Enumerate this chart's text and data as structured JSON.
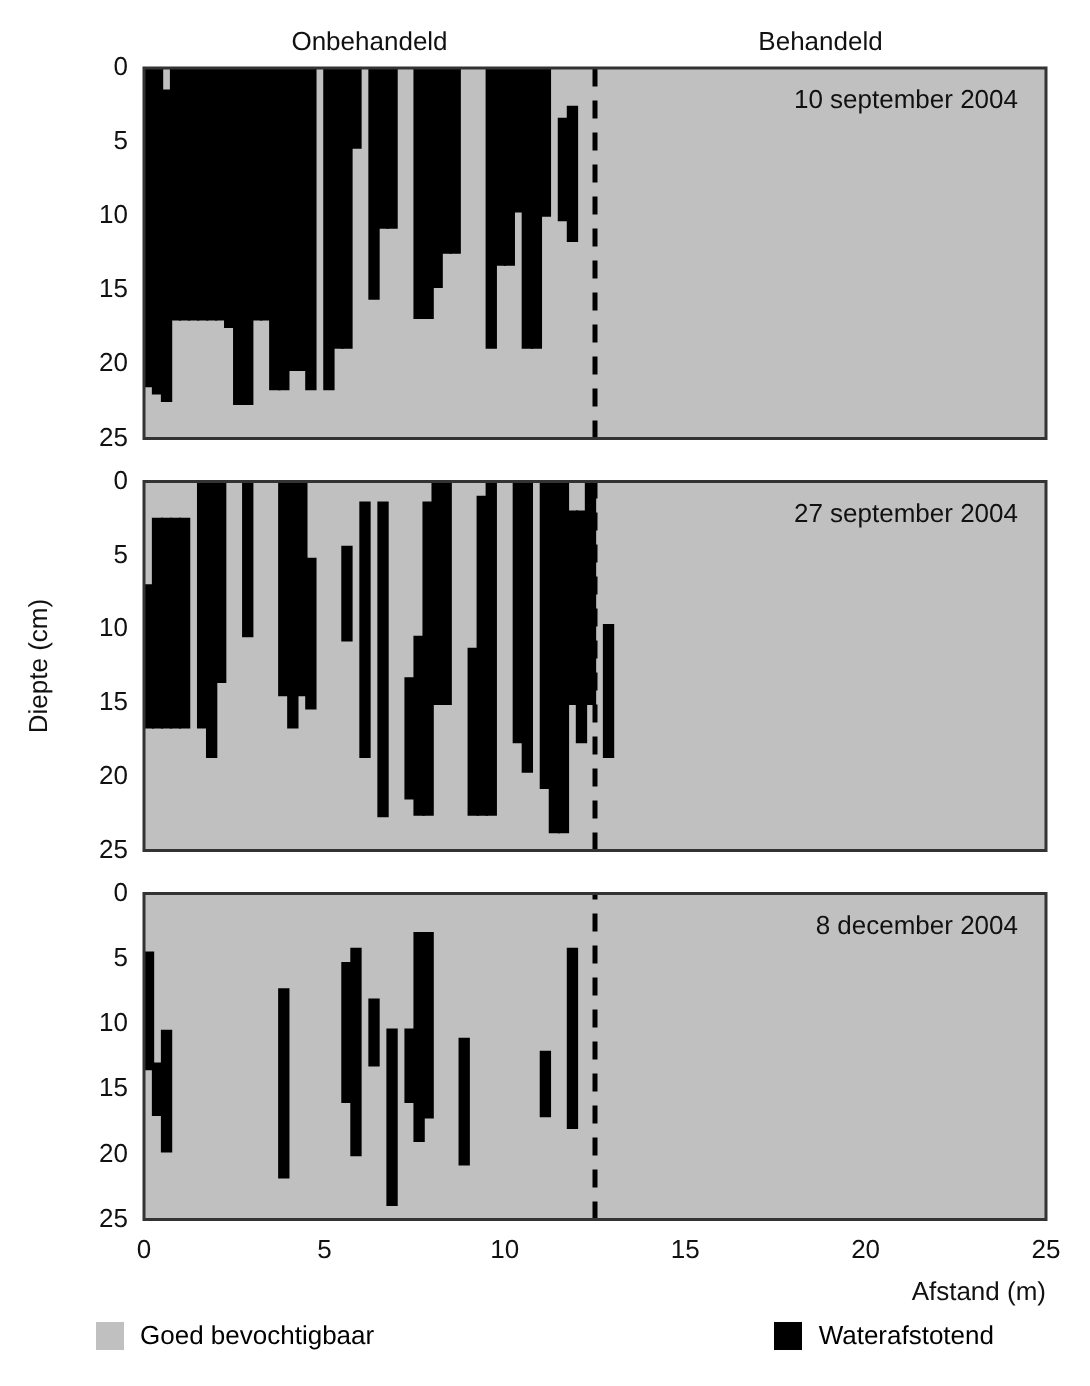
{
  "chart_data": [
    {
      "type": "bar",
      "title": "10 september 2004",
      "annotations": [
        "Onbehandeld",
        "Behandeld"
      ],
      "xlim": [
        0,
        25
      ],
      "xticks": [
        0,
        5,
        10,
        15,
        20,
        25
      ],
      "ylim": [
        25,
        0
      ],
      "yticks": [
        0,
        5,
        10,
        15,
        20,
        25
      ],
      "tick_labels": "y",
      "ref_lines": [
        {
          "axis": "x",
          "value": 12.5,
          "color": "#000000",
          "line_style": "dashed"
        }
      ],
      "series": [
        {
          "color": "#000000",
          "x": [
            0.125,
            0.375,
            0.625,
            0.875,
            1.125,
            1.375,
            1.625,
            1.875,
            2.125,
            2.375,
            2.625,
            2.875,
            3.125,
            3.375,
            3.625,
            3.875,
            4.125,
            4.375,
            4.625,
            5.125,
            5.375,
            5.625,
            5.875,
            6.375,
            6.625,
            6.875,
            7.625,
            7.875,
            8.125,
            8.375,
            8.625,
            9.625,
            9.875,
            10.125,
            10.375,
            10.625,
            10.875,
            11.125,
            11.625,
            11.875
          ],
          "base": [
            0,
            0,
            1.5,
            0,
            0,
            0,
            0,
            0,
            0,
            0,
            0,
            0,
            0,
            0,
            0,
            0,
            0,
            0,
            0,
            0,
            0,
            0,
            0,
            0,
            0,
            0,
            0,
            0,
            0,
            0,
            0,
            0,
            0,
            0,
            0,
            0,
            0,
            0,
            3.4,
            2.6
          ],
          "values": [
            21.5,
            22,
            21,
            17,
            17,
            17,
            17,
            17,
            17,
            17.5,
            22.7,
            22.7,
            17,
            17,
            21.7,
            21.7,
            20.4,
            20.4,
            21.7,
            21.7,
            18.9,
            18.9,
            5.4,
            15.6,
            10.8,
            10.8,
            16.9,
            16.9,
            14.8,
            12.5,
            12.5,
            18.9,
            13.3,
            13.3,
            9.7,
            18.9,
            18.9,
            10,
            6.9,
            9.1
          ]
        }
      ]
    },
    {
      "type": "bar",
      "title": "27 september 2004",
      "ylabel": "Diepte (cm)",
      "xlim": [
        0,
        25
      ],
      "xticks": [
        0,
        5,
        10,
        15,
        20,
        25
      ],
      "ylim": [
        25,
        0
      ],
      "yticks": [
        0,
        5,
        10,
        15,
        20,
        25
      ],
      "tick_labels": "y",
      "ref_lines": [
        {
          "axis": "x",
          "value": 12.5,
          "color": "#000000",
          "line_style": "dashed"
        }
      ],
      "series": [
        {
          "color": "#000000",
          "x": [
            0.125,
            0.375,
            0.625,
            0.875,
            1.125,
            1.625,
            1.875,
            2.125,
            2.875,
            3.875,
            4.125,
            4.375,
            4.625,
            5.625,
            6.125,
            6.625,
            7.375,
            7.625,
            7.875,
            8.125,
            8.375,
            9.125,
            9.375,
            9.625,
            10.375,
            10.625,
            11.125,
            11.375,
            11.625,
            11.875,
            12.125,
            12.375,
            12.875
          ],
          "base": [
            7,
            2.5,
            2.5,
            2.5,
            2.5,
            0,
            0,
            0,
            0,
            0,
            0,
            0,
            5.2,
            4.4,
            1.4,
            1.4,
            13.3,
            10.5,
            1.4,
            0,
            0,
            11.3,
            1,
            0,
            0,
            0,
            0,
            0,
            0,
            2,
            2,
            0,
            9.7
          ],
          "values": [
            9.7,
            14.2,
            14.2,
            14.2,
            14.2,
            16.7,
            18.7,
            13.6,
            10.5,
            14.5,
            16.7,
            14.5,
            10.2,
            6.4,
            17.3,
            21.3,
            8.2,
            12.1,
            21.2,
            15.1,
            15.1,
            11.3,
            21.6,
            22.6,
            17.7,
            19.7,
            20.8,
            23.8,
            23.8,
            13.1,
            15.7,
            15.1,
            9
          ]
        }
      ]
    },
    {
      "type": "bar",
      "title": "8 december 2004",
      "annotations": [
        "Goed bevochtigbaar"
      ],
      "xlabel": "Afstand (m)",
      "xlim": [
        0,
        25
      ],
      "xticks": [
        0,
        5,
        10,
        15,
        20,
        25
      ],
      "ylim": [
        25,
        0
      ],
      "yticks": [
        0,
        5,
        10,
        15,
        20,
        25
      ],
      "legend": "bottom",
      "ref_lines": [
        {
          "axis": "x",
          "value": 12.5,
          "color": "#000000",
          "line_style": "dashed"
        }
      ],
      "series": [
        {
          "name": "Waterafstotend",
          "color": "#000000",
          "x": [
            0.125,
            0.375,
            0.625,
            3.875,
            5.625,
            5.875,
            6.375,
            6.875,
            7.375,
            7.625,
            7.875,
            8.875,
            11.125,
            11.875
          ],
          "base": [
            4.5,
            13,
            10.5,
            7.3,
            5.3,
            4.2,
            8.1,
            10.4,
            10.4,
            3,
            3,
            11.1,
            12.1,
            4.2
          ],
          "values": [
            9,
            4,
            9.3,
            14.5,
            10.7,
            15.9,
            5.1,
            13.5,
            5.6,
            16,
            14.2,
            9.7,
            5,
            13.8
          ]
        }
      ]
    }
  ]
}
